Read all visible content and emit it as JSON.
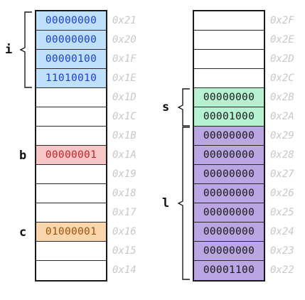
{
  "colors": {
    "blue_fill": "#bfe0fb",
    "blue_text": "#1b3fd6",
    "red_fill": "#f7c6c6",
    "red_text": "#c2252a",
    "orange_fill": "#fad6ad",
    "orange_text": "#a0520c",
    "green_fill": "#b6f2d2",
    "green_text": "#1a1a1a",
    "purple_fill": "#b9a6e2",
    "purple_text": "#1a1a1a",
    "address_text": "#c8c8c8"
  },
  "left_column": {
    "cells": [
      {
        "value": "00000000",
        "address": "0x21",
        "color": "blue"
      },
      {
        "value": "00000000",
        "address": "0x20",
        "color": "blue"
      },
      {
        "value": "00000100",
        "address": "0x1F",
        "color": "blue"
      },
      {
        "value": "11010010",
        "address": "0x1E",
        "color": "blue"
      },
      {
        "value": "",
        "address": "0x1D",
        "color": ""
      },
      {
        "value": "",
        "address": "0x1C",
        "color": ""
      },
      {
        "value": "",
        "address": "0x1B",
        "color": ""
      },
      {
        "value": "00000001",
        "address": "0x1A",
        "color": "red"
      },
      {
        "value": "",
        "address": "0x19",
        "color": ""
      },
      {
        "value": "",
        "address": "0x18",
        "color": ""
      },
      {
        "value": "",
        "address": "0x17",
        "color": ""
      },
      {
        "value": "01000001",
        "address": "0x16",
        "color": "orange"
      },
      {
        "value": "",
        "address": "0x15",
        "color": ""
      },
      {
        "value": "",
        "address": "0x14",
        "color": ""
      }
    ],
    "variables": [
      {
        "name": "i",
        "from": 0,
        "to": 3,
        "bracket": true
      },
      {
        "name": "b",
        "from": 7,
        "to": 7,
        "bracket": false
      },
      {
        "name": "c",
        "from": 11,
        "to": 11,
        "bracket": false
      }
    ]
  },
  "right_column": {
    "cells": [
      {
        "value": "",
        "address": "0x2F",
        "color": ""
      },
      {
        "value": "",
        "address": "0x2E",
        "color": ""
      },
      {
        "value": "",
        "address": "0x2D",
        "color": ""
      },
      {
        "value": "",
        "address": "0x2C",
        "color": ""
      },
      {
        "value": "00000000",
        "address": "0x2B",
        "color": "green"
      },
      {
        "value": "00001000",
        "address": "0x2A",
        "color": "green"
      },
      {
        "value": "00000000",
        "address": "0x29",
        "color": "purple"
      },
      {
        "value": "00000000",
        "address": "0x28",
        "color": "purple"
      },
      {
        "value": "00000000",
        "address": "0x27",
        "color": "purple"
      },
      {
        "value": "00000000",
        "address": "0x26",
        "color": "purple"
      },
      {
        "value": "00000000",
        "address": "0x25",
        "color": "purple"
      },
      {
        "value": "00000000",
        "address": "0x24",
        "color": "purple"
      },
      {
        "value": "00000000",
        "address": "0x23",
        "color": "purple"
      },
      {
        "value": "00001100",
        "address": "0x22",
        "color": "purple"
      }
    ],
    "variables": [
      {
        "name": "s",
        "from": 4,
        "to": 5,
        "bracket": true
      },
      {
        "name": "l",
        "from": 6,
        "to": 13,
        "bracket": true
      }
    ]
  }
}
